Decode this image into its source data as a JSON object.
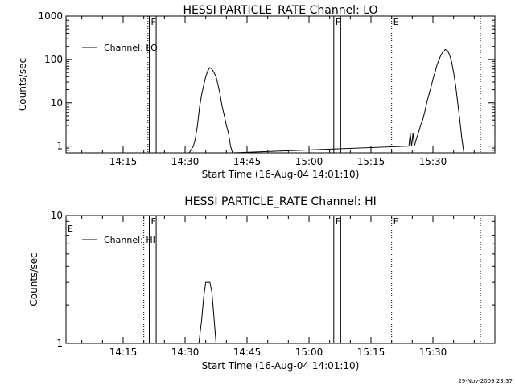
{
  "footer": {
    "timestamp": "29-Nov-2009 23:37"
  },
  "chart_data": [
    {
      "type": "line",
      "title": "HESSI PARTICLE_RATE Channel: LO",
      "xlabel": "Start Time (16-Aug-04 14:01:10)",
      "ylabel": "Counts/sec",
      "yscale": "log",
      "ylim": [
        0.7,
        1000
      ],
      "xlim": [
        "14:01:10",
        "15:45:00"
      ],
      "xticks": [
        "14:15",
        "14:30",
        "14:45",
        "15:00",
        "15:15",
        "15:30"
      ],
      "yticks": [
        "1",
        "10",
        "100",
        "1000"
      ],
      "grid": false,
      "legend": {
        "placement": "top-left",
        "entries": [
          "Channel: LO"
        ]
      },
      "series": [
        {
          "name": "Channel: LO",
          "x": [
            "14:31:00",
            "14:32:00",
            "14:32:30",
            "14:33:00",
            "14:33:30",
            "14:34:00",
            "14:34:30",
            "14:35:00",
            "14:35:30",
            "14:36:00",
            "14:36:30",
            "14:37:00",
            "14:37:30",
            "14:38:00",
            "14:38:30",
            "14:39:00",
            "14:39:30",
            "14:40:00",
            "14:40:30",
            "14:41:00",
            "14:41:30",
            "15:24:10",
            "15:24:30",
            "15:24:50",
            "15:25:10",
            "15:25:30",
            "15:26:00",
            "15:26:30",
            "15:27:00",
            "15:27:30",
            "15:28:00",
            "15:28:30",
            "15:29:00",
            "15:29:30",
            "15:30:00",
            "15:30:30",
            "15:31:00",
            "15:31:30",
            "15:32:00",
            "15:32:30",
            "15:33:00",
            "15:33:30",
            "15:34:00",
            "15:34:30",
            "15:35:00",
            "15:35:30",
            "15:36:00",
            "15:36:30",
            "15:37:00",
            "15:37:30"
          ],
          "y": [
            0.7,
            1,
            1.5,
            3,
            8,
            15,
            25,
            40,
            55,
            65,
            60,
            50,
            40,
            25,
            15,
            8,
            5,
            3,
            2,
            1,
            0.7,
            1,
            2,
            1,
            2,
            1,
            1.5,
            2,
            3,
            4,
            6,
            10,
            15,
            22,
            35,
            50,
            75,
            100,
            130,
            150,
            170,
            160,
            130,
            90,
            50,
            25,
            10,
            4,
            1.5,
            0.7
          ]
        }
      ],
      "markers": [
        {
          "time": "14:21:00",
          "style": "dotted"
        },
        {
          "time": "14:21:20",
          "label": "F",
          "style": "solid"
        },
        {
          "time": "14:23:00",
          "style": "solid"
        },
        {
          "time": "15:06:00",
          "label": "F",
          "style": "solid"
        },
        {
          "time": "15:07:40",
          "style": "solid"
        },
        {
          "time": "15:20:00",
          "label": "E",
          "style": "dotted"
        },
        {
          "time": "15:41:30",
          "style": "dotted"
        }
      ]
    },
    {
      "type": "line",
      "title": "HESSI PARTICLE_RATE Channel: HI",
      "xlabel": "Start Time (16-Aug-04 14:01:10)",
      "ylabel": "Counts/sec",
      "yscale": "log",
      "ylim": [
        1,
        10
      ],
      "xlim": [
        "14:01:10",
        "15:45:00"
      ],
      "xticks": [
        "14:15",
        "14:30",
        "14:45",
        "15:00",
        "15:15",
        "15:30"
      ],
      "yticks": [
        "1",
        "10"
      ],
      "grid": false,
      "legend": {
        "placement": "top-left",
        "entries": [
          "Channel: HI"
        ]
      },
      "series": [
        {
          "name": "Channel: HI",
          "x": [
            "14:33:20",
            "14:34:00",
            "14:34:30",
            "14:35:00",
            "14:35:30",
            "14:36:00",
            "14:36:30",
            "14:37:00",
            "14:37:30",
            "14:38:00"
          ],
          "y": [
            1,
            1.5,
            2.3,
            3,
            3,
            3,
            2.5,
            1.6,
            1,
            1
          ]
        }
      ],
      "markers": [
        {
          "time": "14:20:00",
          "style": "dotted"
        },
        {
          "time": "14:21:20",
          "label": "F",
          "style": "solid"
        },
        {
          "time": "14:23:00",
          "style": "solid"
        },
        {
          "time": "15:06:00",
          "label": "F",
          "style": "solid"
        },
        {
          "time": "15:07:40",
          "style": "solid"
        },
        {
          "time": "15:20:00",
          "label": "E",
          "style": "dotted"
        },
        {
          "time": "15:41:30",
          "style": "dotted"
        }
      ],
      "edge_labels": {
        "left": "E"
      }
    }
  ]
}
